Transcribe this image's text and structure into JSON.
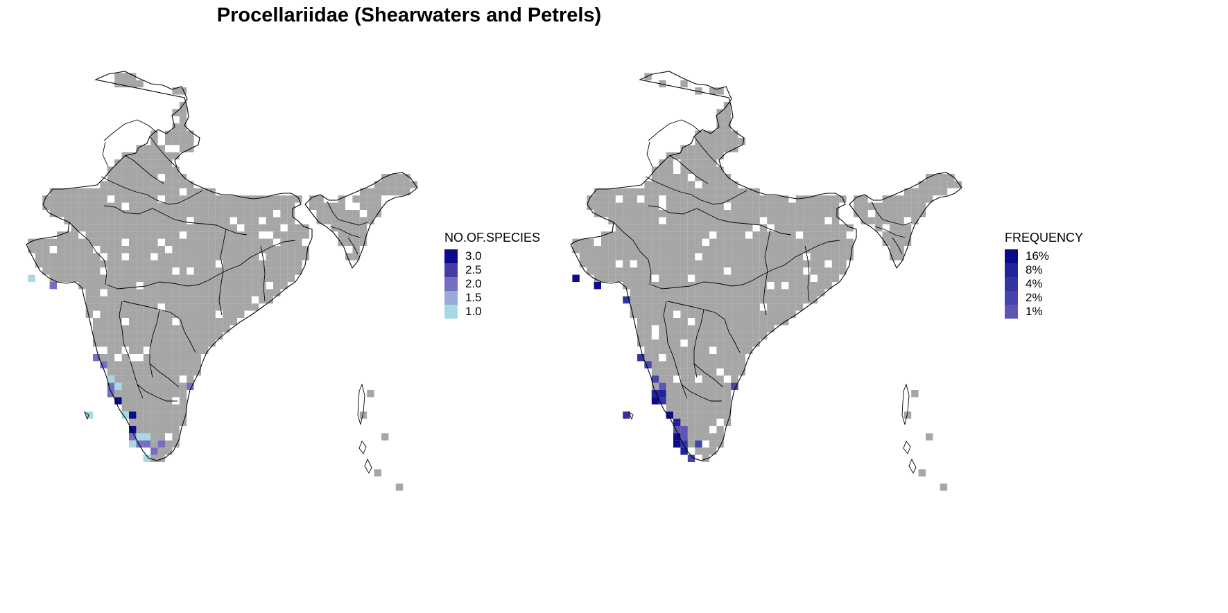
{
  "title": "Procellariidae (Shearwaters and Petrels)",
  "colors": {
    "occupied_cell": "#a6a6a6",
    "boundary": "#000000",
    "background": "#ffffff"
  },
  "maps": [
    {
      "legend_title": "NO.OF.SPECIES",
      "legend": [
        {
          "label": "3.0",
          "color": "#0b0b8c"
        },
        {
          "label": "2.5",
          "color": "#4a3aa5"
        },
        {
          "label": "2.0",
          "color": "#7370c2"
        },
        {
          "label": "1.5",
          "color": "#9aaad8"
        },
        {
          "label": "1.0",
          "color": "#a8d8e3"
        }
      ]
    },
    {
      "legend_title": "FREQUENCY",
      "legend": [
        {
          "label": "16%",
          "color": "#0b0b8c"
        },
        {
          "label": "8%",
          "color": "#22229a"
        },
        {
          "label": "4%",
          "color": "#3434a1"
        },
        {
          "label": "2%",
          "color": "#4444aa"
        },
        {
          "label": "1%",
          "color": "#5d55b0"
        }
      ]
    }
  ]
}
